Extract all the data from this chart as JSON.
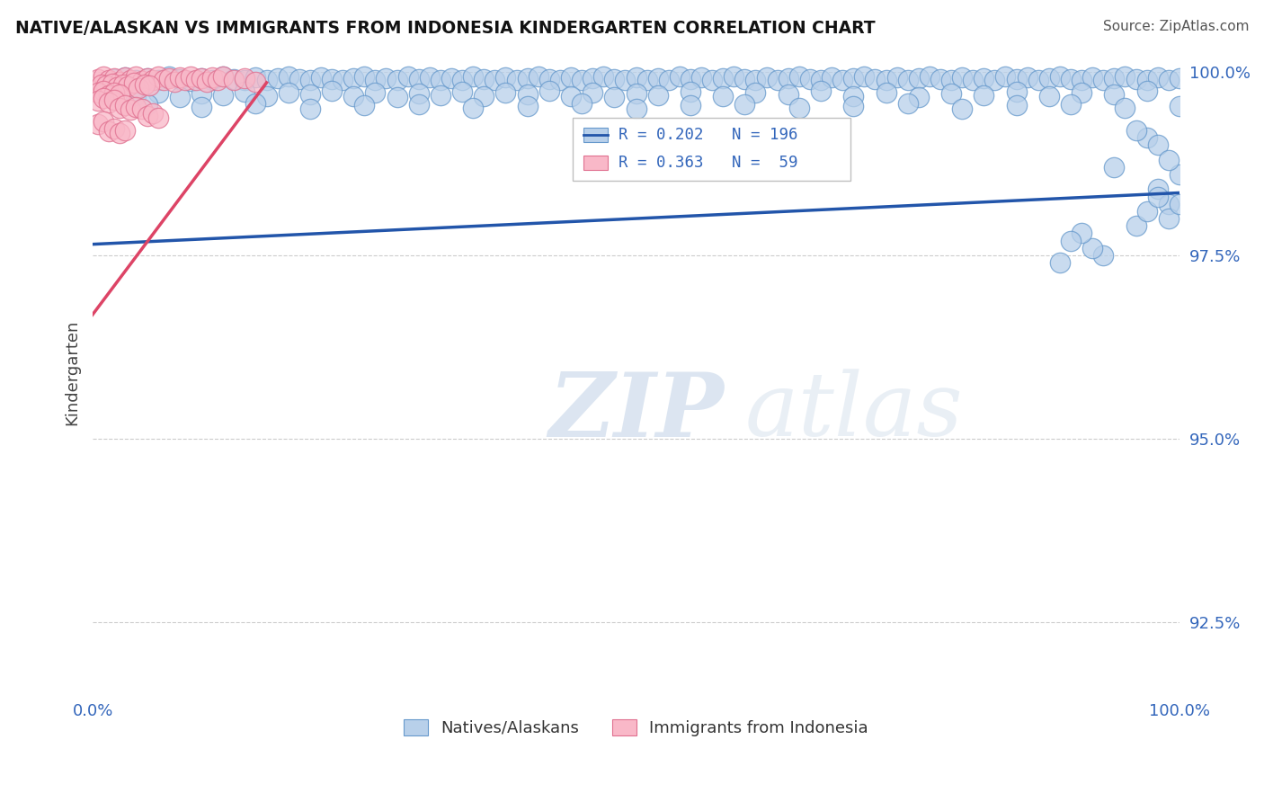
{
  "title": "NATIVE/ALASKAN VS IMMIGRANTS FROM INDONESIA KINDERGARTEN CORRELATION CHART",
  "source": "Source: ZipAtlas.com",
  "ylabel": "Kindergarten",
  "watermark_zip": "ZIP",
  "watermark_atlas": "atlas",
  "xlim": [
    0.0,
    1.0
  ],
  "ylim": [
    0.915,
    1.003
  ],
  "yticks": [
    0.925,
    0.95,
    0.975,
    1.0
  ],
  "ytick_labels": [
    "92.5%",
    "95.0%",
    "97.5%",
    "100.0%"
  ],
  "xticks": [
    0.0,
    1.0
  ],
  "xtick_labels": [
    "0.0%",
    "100.0%"
  ],
  "blue_R": 0.202,
  "blue_N": 196,
  "pink_R": 0.363,
  "pink_N": 59,
  "blue_dot_color": "#b8d0ea",
  "blue_edge_color": "#6699cc",
  "pink_dot_color": "#f9b8c8",
  "pink_edge_color": "#e07090",
  "blue_line_color": "#2255aa",
  "pink_line_color": "#dd4466",
  "title_color": "#111111",
  "source_color": "#555555",
  "axis_label_color": "#3366bb",
  "ylabel_color": "#444444",
  "background_color": "#ffffff",
  "grid_color": "#cccccc",
  "legend_border_color": "#bbbbbb",
  "blue_trend_x": [
    0.0,
    1.0
  ],
  "blue_trend_y": [
    0.9765,
    0.9835
  ],
  "pink_trend_x": [
    -0.02,
    0.16
  ],
  "pink_trend_y": [
    0.963,
    0.9985
  ],
  "blue_scatter_x": [
    0.02,
    0.03,
    0.04,
    0.05,
    0.06,
    0.07,
    0.08,
    0.09,
    0.1,
    0.11,
    0.12,
    0.13,
    0.14,
    0.15,
    0.16,
    0.17,
    0.18,
    0.19,
    0.2,
    0.21,
    0.22,
    0.23,
    0.24,
    0.25,
    0.26,
    0.27,
    0.28,
    0.29,
    0.3,
    0.31,
    0.32,
    0.33,
    0.34,
    0.35,
    0.36,
    0.37,
    0.38,
    0.39,
    0.4,
    0.41,
    0.42,
    0.43,
    0.44,
    0.45,
    0.46,
    0.47,
    0.48,
    0.49,
    0.5,
    0.51,
    0.52,
    0.53,
    0.54,
    0.55,
    0.56,
    0.57,
    0.58,
    0.59,
    0.6,
    0.61,
    0.62,
    0.63,
    0.64,
    0.65,
    0.66,
    0.67,
    0.68,
    0.69,
    0.7,
    0.71,
    0.72,
    0.73,
    0.74,
    0.75,
    0.76,
    0.77,
    0.78,
    0.79,
    0.8,
    0.81,
    0.82,
    0.83,
    0.84,
    0.85,
    0.86,
    0.87,
    0.88,
    0.89,
    0.9,
    0.91,
    0.92,
    0.93,
    0.94,
    0.95,
    0.96,
    0.97,
    0.98,
    0.99,
    1.0,
    0.04,
    0.06,
    0.08,
    0.1,
    0.12,
    0.14,
    0.16,
    0.18,
    0.2,
    0.22,
    0.24,
    0.26,
    0.28,
    0.3,
    0.32,
    0.34,
    0.36,
    0.38,
    0.4,
    0.42,
    0.44,
    0.46,
    0.48,
    0.5,
    0.52,
    0.55,
    0.58,
    0.61,
    0.64,
    0.67,
    0.7,
    0.73,
    0.76,
    0.79,
    0.82,
    0.85,
    0.88,
    0.91,
    0.94,
    0.97,
    0.98,
    0.99,
    1.0,
    0.05,
    0.1,
    0.15,
    0.2,
    0.25,
    0.3,
    0.35,
    0.4,
    0.45,
    0.5,
    0.55,
    0.6,
    0.65,
    0.7,
    0.75,
    0.8,
    0.85,
    0.9,
    0.95,
    1.0,
    0.96,
    0.97,
    0.98,
    0.99,
    1.0,
    0.93,
    0.92,
    0.91,
    0.9,
    0.89,
    0.97,
    0.98,
    0.96,
    0.99,
    0.94
  ],
  "blue_scatter_y": [
    0.999,
    0.9992,
    0.9988,
    0.9991,
    0.9989,
    0.9993,
    0.999,
    0.9987,
    0.9991,
    0.9989,
    0.9993,
    0.999,
    0.9988,
    0.9992,
    0.9989,
    0.9991,
    0.9993,
    0.999,
    0.9988,
    0.9992,
    0.999,
    0.9988,
    0.9991,
    0.9993,
    0.9989,
    0.9991,
    0.9988,
    0.9993,
    0.999,
    0.9992,
    0.9989,
    0.9991,
    0.9988,
    0.9993,
    0.999,
    0.9988,
    0.9992,
    0.9989,
    0.9991,
    0.9993,
    0.999,
    0.9988,
    0.9992,
    0.9989,
    0.9991,
    0.9993,
    0.999,
    0.9988,
    0.9992,
    0.9989,
    0.9991,
    0.9988,
    0.9993,
    0.999,
    0.9992,
    0.9989,
    0.9991,
    0.9993,
    0.999,
    0.9988,
    0.9992,
    0.9989,
    0.9991,
    0.9993,
    0.999,
    0.9988,
    0.9992,
    0.9989,
    0.9991,
    0.9993,
    0.999,
    0.9988,
    0.9992,
    0.9989,
    0.9991,
    0.9993,
    0.999,
    0.9988,
    0.9992,
    0.9989,
    0.9991,
    0.9988,
    0.9993,
    0.999,
    0.9992,
    0.9989,
    0.9991,
    0.9993,
    0.999,
    0.9988,
    0.9992,
    0.9989,
    0.9991,
    0.9993,
    0.999,
    0.9988,
    0.9992,
    0.9989,
    0.9991,
    0.9968,
    0.9972,
    0.9965,
    0.997,
    0.9968,
    0.9973,
    0.9966,
    0.9971,
    0.9969,
    0.9974,
    0.9967,
    0.9972,
    0.9965,
    0.997,
    0.9968,
    0.9973,
    0.9966,
    0.9971,
    0.9969,
    0.9974,
    0.9967,
    0.9972,
    0.9965,
    0.997,
    0.9968,
    0.9973,
    0.9966,
    0.9971,
    0.9969,
    0.9974,
    0.9967,
    0.9972,
    0.9965,
    0.997,
    0.9968,
    0.9973,
    0.9966,
    0.9971,
    0.9969,
    0.9974,
    0.984,
    0.982,
    0.986,
    0.9955,
    0.9952,
    0.9957,
    0.995,
    0.9954,
    0.9956,
    0.9951,
    0.9953,
    0.9957,
    0.995,
    0.9954,
    0.9956,
    0.9951,
    0.9953,
    0.9957,
    0.995,
    0.9954,
    0.9956,
    0.9951,
    0.9953,
    0.979,
    0.981,
    0.983,
    0.98,
    0.982,
    0.975,
    0.976,
    0.978,
    0.977,
    0.974,
    0.991,
    0.99,
    0.992,
    0.988,
    0.987
  ],
  "pink_scatter_x": [
    0.005,
    0.01,
    0.015,
    0.02,
    0.025,
    0.03,
    0.035,
    0.04,
    0.045,
    0.05,
    0.055,
    0.06,
    0.065,
    0.07,
    0.075,
    0.08,
    0.085,
    0.09,
    0.095,
    0.1,
    0.105,
    0.11,
    0.115,
    0.12,
    0.13,
    0.14,
    0.15,
    0.008,
    0.012,
    0.018,
    0.022,
    0.028,
    0.032,
    0.038,
    0.042,
    0.048,
    0.052,
    0.005,
    0.01,
    0.015,
    0.02,
    0.025,
    0.005,
    0.01,
    0.015,
    0.02,
    0.025,
    0.03,
    0.035,
    0.04,
    0.045,
    0.05,
    0.055,
    0.06,
    0.005,
    0.01,
    0.015,
    0.02,
    0.025,
    0.03
  ],
  "pink_scatter_y": [
    0.999,
    0.9993,
    0.9988,
    0.9991,
    0.9986,
    0.9992,
    0.9989,
    0.9994,
    0.9987,
    0.9991,
    0.9989,
    0.9993,
    0.9988,
    0.9991,
    0.9986,
    0.9992,
    0.9989,
    0.9993,
    0.9988,
    0.9991,
    0.9986,
    0.9992,
    0.9989,
    0.9993,
    0.9988,
    0.9991,
    0.9986,
    0.9983,
    0.9981,
    0.9984,
    0.9979,
    0.9982,
    0.998,
    0.9985,
    0.9978,
    0.9983,
    0.9981,
    0.9971,
    0.9974,
    0.9968,
    0.9972,
    0.9969,
    0.9961,
    0.9964,
    0.9958,
    0.9962,
    0.9951,
    0.9954,
    0.9948,
    0.9952,
    0.9949,
    0.994,
    0.9943,
    0.9937,
    0.9929,
    0.9932,
    0.9919,
    0.9922,
    0.9916,
    0.992
  ]
}
